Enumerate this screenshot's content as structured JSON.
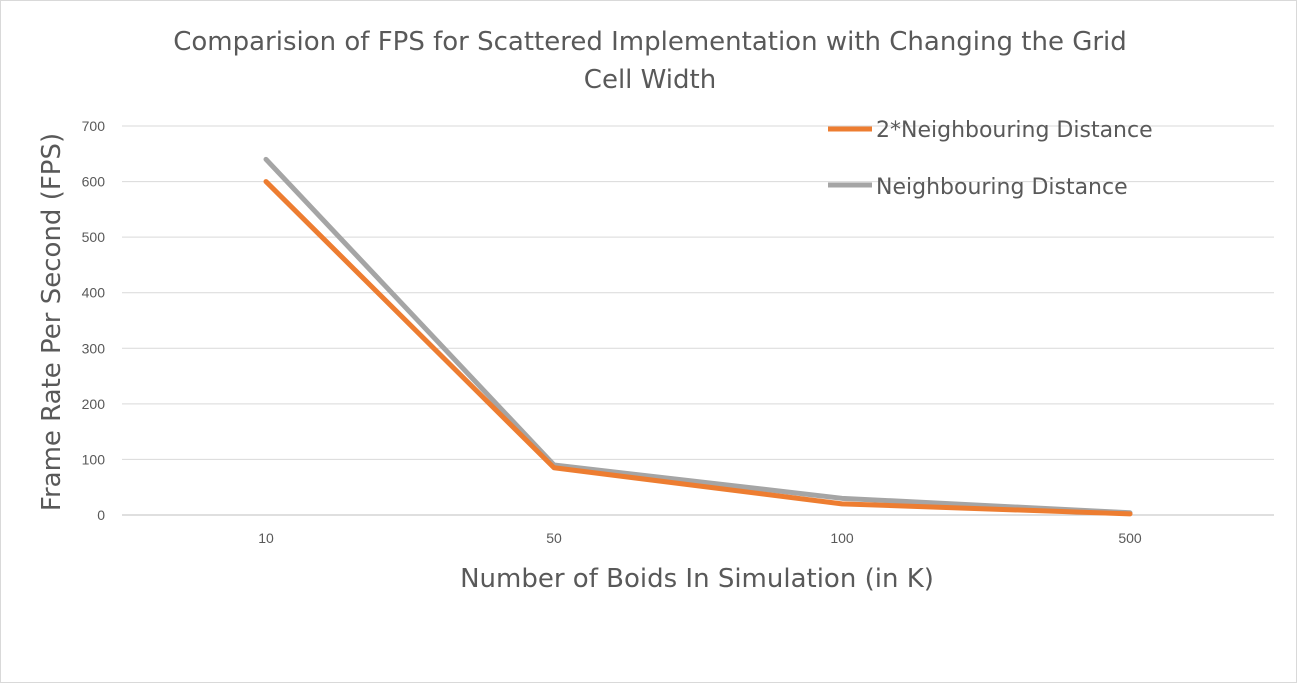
{
  "chart_data": {
    "type": "line",
    "title_lines": [
      "Comparision of FPS for Scattered Implementation with Changing the Grid",
      "Cell Width"
    ],
    "xlabel": "Number of Boids In Simulation (in K)",
    "ylabel": "Frame Rate Per Second (FPS)",
    "categories": [
      "10",
      "50",
      "100",
      "500"
    ],
    "ylim": [
      0,
      700
    ],
    "yticks": [
      "0",
      "100",
      "200",
      "300",
      "400",
      "500",
      "600",
      "700"
    ],
    "grid": true,
    "legend_position": "top-right",
    "series": [
      {
        "name": "2*Neighbouring Distance",
        "color": "#ed7d31",
        "values": [
          600,
          85,
          20,
          2
        ]
      },
      {
        "name": "Neighbouring Distance",
        "color": "#a5a5a5",
        "values": [
          640,
          90,
          30,
          4
        ]
      }
    ]
  }
}
